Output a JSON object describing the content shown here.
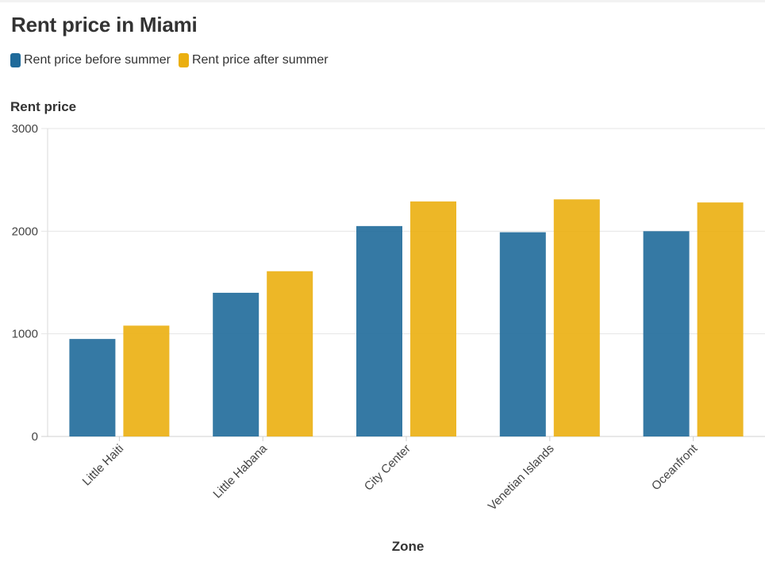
{
  "chart_data": {
    "type": "bar",
    "title": "Rent price in Miami",
    "xlabel": "Zone",
    "ylabel": "Rent price",
    "categories": [
      "Little Haiti",
      "Little Habana",
      "City Center",
      "Venetian Islands",
      "Oceanfront"
    ],
    "series": [
      {
        "name": "Rent price before summer",
        "color": "#1f6a9a",
        "values": [
          950,
          1400,
          2050,
          1990,
          2000
        ]
      },
      {
        "name": "Rent price after summer",
        "color": "#ebaf0f",
        "values": [
          1080,
          1610,
          2290,
          2310,
          2280
        ]
      }
    ],
    "ylim": [
      0,
      3000
    ],
    "yticks": [
      "0",
      "1000",
      "2000",
      "3000"
    ],
    "ytick_values": [
      0,
      1000,
      2000,
      3000
    ],
    "grid": true,
    "legend_position": "top-left"
  }
}
